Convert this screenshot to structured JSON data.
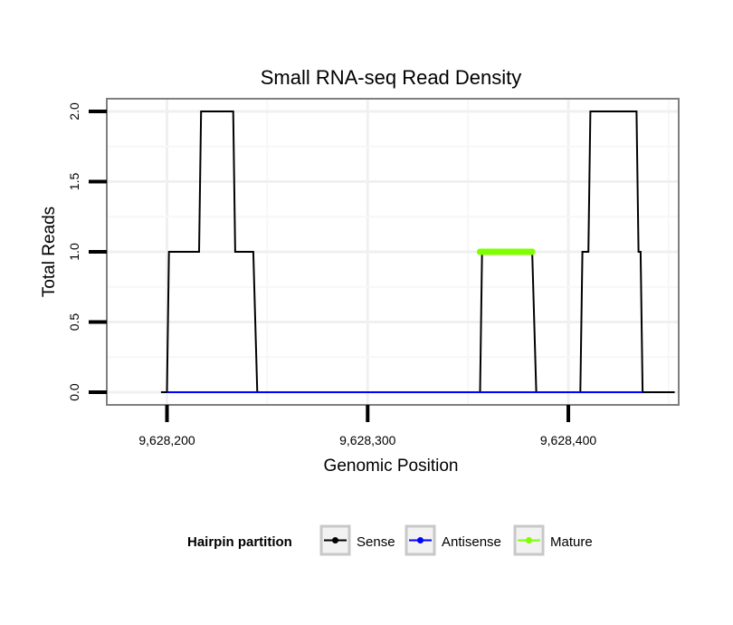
{
  "chart_data": {
    "type": "line",
    "title": "Small RNA-seq Read Density",
    "xlabel": "Genomic Position",
    "ylabel": "Total Reads",
    "xlim": [
      9628170,
      9628455
    ],
    "ylim": [
      -0.09,
      2.09
    ],
    "x_ticks": [
      9628200,
      9628300,
      9628400
    ],
    "x_tick_labels": [
      "9,628,200",
      "9,628,300",
      "9,628,400"
    ],
    "y_ticks": [
      0,
      0.5,
      1,
      1.5,
      2
    ],
    "y_tick_labels": [
      "0.0",
      "0.5",
      "1.0",
      "1.5",
      "2.0"
    ],
    "grid": true,
    "series": [
      {
        "name": "Sense",
        "color": "#000000",
        "points": [
          [
            9628197,
            0
          ],
          [
            9628200,
            0
          ],
          [
            9628201,
            1
          ],
          [
            9628216,
            1
          ],
          [
            9628217,
            2
          ],
          [
            9628233,
            2
          ],
          [
            9628234,
            1
          ],
          [
            9628243,
            1
          ],
          [
            9628245,
            0
          ],
          [
            9628356,
            0
          ],
          [
            9628357,
            1
          ],
          [
            9628382,
            1
          ],
          [
            9628384,
            0
          ],
          [
            9628406,
            0
          ],
          [
            9628407,
            1
          ],
          [
            9628410,
            1
          ],
          [
            9628411,
            2
          ],
          [
            9628434,
            2
          ],
          [
            9628435,
            1
          ],
          [
            9628436,
            1
          ],
          [
            9628437,
            0
          ],
          [
            9628453,
            0
          ]
        ]
      },
      {
        "name": "Antisense",
        "color": "#0000ff",
        "points": [
          [
            9628200,
            0
          ],
          [
            9628245,
            0
          ],
          [
            9628356,
            0
          ],
          [
            9628384,
            0
          ],
          [
            9628407,
            0
          ],
          [
            9628437,
            0
          ]
        ]
      },
      {
        "name": "Mature",
        "color": "#7fff00",
        "points": [
          [
            9628356,
            1
          ],
          [
            9628382,
            1
          ]
        ]
      }
    ],
    "legend": {
      "position": "bottom",
      "title": "Hairpin partition",
      "entries": [
        {
          "label": "Sense",
          "color": "#000000"
        },
        {
          "label": "Antisense",
          "color": "#0000ff"
        },
        {
          "label": "Mature",
          "color": "#7fff00"
        }
      ]
    }
  }
}
